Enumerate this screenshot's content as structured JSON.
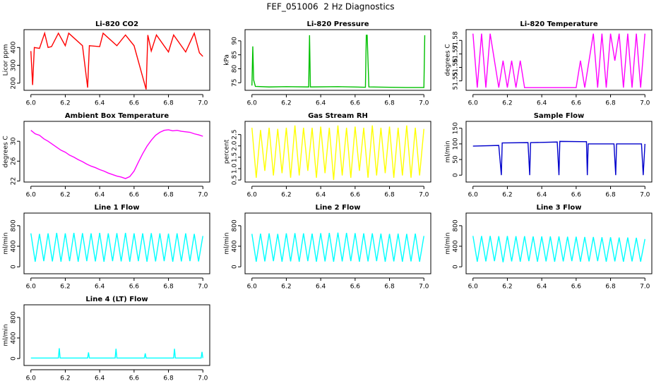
{
  "title": "FEF_051006  2 Hz Diagnostics",
  "chart_data": [
    {
      "type": "line",
      "title": "Li-820 CO2",
      "ylabel": "Licor ppm",
      "color": "#ff0000",
      "x": [
        6.0,
        6.01,
        6.02,
        6.05,
        6.08,
        6.1,
        6.12,
        6.16,
        6.2,
        6.22,
        6.3,
        6.33,
        6.34,
        6.4,
        6.42,
        6.5,
        6.55,
        6.6,
        6.67,
        6.68,
        6.7,
        6.73,
        6.8,
        6.83,
        6.9,
        6.95,
        6.98,
        7.0
      ],
      "values": [
        380,
        190,
        400,
        395,
        480,
        400,
        405,
        480,
        410,
        480,
        410,
        175,
        410,
        405,
        480,
        410,
        470,
        410,
        165,
        470,
        380,
        470,
        375,
        470,
        375,
        480,
        370,
        350
      ],
      "xlim": [
        5.96,
        7.04
      ],
      "xticks": [
        {
          "value": 6,
          "label": "6.0"
        },
        6.2,
        6.4,
        6.6,
        6.8,
        {
          "value": 7,
          "label": "7.0"
        }
      ],
      "ylim": [
        160,
        500
      ],
      "yticks": [
        200,
        300,
        400
      ]
    },
    {
      "type": "line",
      "title": "Li-820 Pressure",
      "ylabel": "kPa",
      "color": "#00c000",
      "x": [
        6.0,
        6.005,
        6.01,
        6.02,
        6.1,
        6.2,
        6.33,
        6.335,
        6.34,
        6.5,
        6.66,
        6.665,
        6.67,
        6.68,
        6.8,
        6.9,
        7.0,
        7.005
      ],
      "values": [
        74,
        88,
        76,
        73.7,
        73.5,
        73.6,
        73.5,
        92,
        73.5,
        73.6,
        73.4,
        92,
        92,
        73.5,
        73.4,
        73.3,
        73.3,
        92
      ],
      "xlim": [
        5.96,
        7.04
      ],
      "xticks": [
        {
          "value": 6,
          "label": "6.0"
        },
        6.2,
        6.4,
        6.6,
        6.8,
        {
          "value": 7,
          "label": "7.0"
        }
      ],
      "ylim": [
        72.3,
        94
      ],
      "yticks": [
        75,
        80,
        85,
        90
      ]
    },
    {
      "type": "line",
      "title": "Li-820 Temperature",
      "ylabel": "degrees C",
      "color": "#ff00ff",
      "x": [
        6,
        6.025,
        6.05,
        6.075,
        6.1,
        6.125,
        6.15,
        6.175,
        6.2,
        6.225,
        6.25,
        6.275,
        6.3,
        6.325,
        6.35,
        6.375,
        6.4,
        6.425,
        6.45,
        6.475,
        6.5,
        6.525,
        6.55,
        6.575,
        6.6,
        6.625,
        6.65,
        6.675,
        6.7,
        6.725,
        6.75,
        6.775,
        6.8,
        6.825,
        6.85,
        6.875,
        6.9,
        6.925,
        6.95,
        6.975,
        7
      ],
      "values": [
        51.585,
        51.545,
        51.585,
        51.545,
        51.585,
        51.565,
        51.545,
        51.565,
        51.545,
        51.565,
        51.545,
        51.565,
        51.545,
        51.545,
        51.545,
        51.545,
        51.545,
        51.545,
        51.545,
        51.545,
        51.545,
        51.545,
        51.545,
        51.545,
        51.545,
        51.565,
        51.545,
        51.565,
        51.585,
        51.545,
        51.585,
        51.545,
        51.585,
        51.565,
        51.585,
        51.545,
        51.585,
        51.545,
        51.585,
        51.545,
        51.585
      ],
      "xlim": [
        5.96,
        7.04
      ],
      "xticks": [
        {
          "value": 6,
          "label": "6.0"
        },
        6.2,
        6.4,
        6.6,
        6.8,
        {
          "value": 7,
          "label": "7.0"
        }
      ],
      "ylim": [
        51.543,
        51.588
      ],
      "yticks": [
        51.55,
        51.56,
        51.57,
        51.58
      ]
    },
    {
      "type": "line",
      "title": "Ambient Box Temperature",
      "ylabel": "degrees C",
      "color": "#ff00ff",
      "x": [
        6,
        6.025,
        6.05,
        6.075,
        6.1,
        6.125,
        6.15,
        6.175,
        6.2,
        6.225,
        6.25,
        6.275,
        6.3,
        6.325,
        6.35,
        6.375,
        6.4,
        6.425,
        6.45,
        6.475,
        6.5,
        6.525,
        6.55,
        6.575,
        6.6,
        6.625,
        6.65,
        6.675,
        6.7,
        6.725,
        6.75,
        6.775,
        6.8,
        6.825,
        6.85,
        6.875,
        6.9,
        6.925,
        6.95,
        6.975,
        7
      ],
      "values": [
        32.2,
        31.5,
        31.2,
        30.5,
        30.0,
        29.4,
        28.8,
        28.2,
        27.8,
        27.2,
        26.8,
        26.3,
        25.9,
        25.4,
        25.0,
        24.7,
        24.3,
        24.0,
        23.6,
        23.3,
        23.0,
        22.8,
        22.5,
        22.9,
        24.0,
        25.8,
        27.5,
        29.0,
        30.2,
        31.2,
        31.8,
        32.2,
        32.3,
        32.1,
        32.2,
        32.0,
        31.9,
        31.8,
        31.5,
        31.3,
        31.0
      ],
      "xlim": [
        5.96,
        7.04
      ],
      "xticks": [
        {
          "value": 6,
          "label": "6.0"
        },
        6.2,
        6.4,
        6.6,
        6.8,
        {
          "value": 7,
          "label": "7.0"
        }
      ],
      "ylim": [
        21.8,
        34
      ],
      "yticks": [
        22,
        26,
        30
      ]
    },
    {
      "type": "line",
      "title": "Gas Stream RH",
      "ylabel": "percent",
      "color": "#ffff00",
      "x": [
        6,
        6.025,
        6.05,
        6.075,
        6.1,
        6.125,
        6.15,
        6.175,
        6.2,
        6.225,
        6.25,
        6.275,
        6.3,
        6.325,
        6.35,
        6.375,
        6.4,
        6.425,
        6.45,
        6.475,
        6.5,
        6.525,
        6.55,
        6.575,
        6.6,
        6.625,
        6.65,
        6.675,
        6.7,
        6.725,
        6.75,
        6.775,
        6.8,
        6.825,
        6.85,
        6.875,
        6.9,
        6.925,
        6.95,
        6.975,
        7
      ],
      "values": [
        2.8,
        0.6,
        2.7,
        0.9,
        2.8,
        0.7,
        2.75,
        0.8,
        2.8,
        0.6,
        2.9,
        0.7,
        2.8,
        0.9,
        2.8,
        0.6,
        2.85,
        0.8,
        2.8,
        0.5,
        2.9,
        0.7,
        2.8,
        0.6,
        2.85,
        0.9,
        2.8,
        0.6,
        2.9,
        0.7,
        2.8,
        0.8,
        2.85,
        0.6,
        2.8,
        0.7,
        2.9,
        0.6,
        2.8,
        0.7,
        2.75
      ],
      "xlim": [
        5.96,
        7.04
      ],
      "xticks": [
        {
          "value": 6,
          "label": "6.0"
        },
        6.2,
        6.4,
        6.6,
        6.8,
        {
          "value": 7,
          "label": "7.0"
        }
      ],
      "ylim": [
        0.41,
        3.08
      ],
      "yticks": [
        0.5,
        {
          "value": 1,
          "label": "1.0"
        },
        1.5,
        {
          "value": 2,
          "label": "2.0"
        },
        2.5
      ]
    },
    {
      "type": "line",
      "title": "Sample Flow",
      "ylabel": "ml/min",
      "color": "#0000cc",
      "x": [
        6.0,
        6.15,
        6.165,
        6.17,
        6.175,
        6.32,
        6.33,
        6.335,
        6.49,
        6.5,
        6.505,
        6.66,
        6.665,
        6.67,
        6.68,
        6.82,
        6.83,
        6.835,
        6.98,
        6.99,
        7.0
      ],
      "values": [
        93,
        95,
        0,
        103,
        103,
        104,
        0,
        104,
        106,
        0,
        108,
        107,
        0,
        100,
        100,
        100,
        0,
        100,
        100,
        0,
        100
      ],
      "xlim": [
        5.96,
        7.04
      ],
      "xticks": [
        {
          "value": 6,
          "label": "6.0"
        },
        6.2,
        6.4,
        6.6,
        6.8,
        {
          "value": 7,
          "label": "7.0"
        }
      ],
      "ylim": [
        -22,
        172
      ],
      "yticks": [
        0,
        50,
        100,
        150
      ]
    },
    {
      "type": "line",
      "title": "Line 1 Flow",
      "ylabel": "ml/min",
      "color": "#00ffff",
      "x": [
        6,
        6.025,
        6.05,
        6.075,
        6.1,
        6.125,
        6.15,
        6.175,
        6.2,
        6.225,
        6.25,
        6.275,
        6.3,
        6.325,
        6.35,
        6.375,
        6.4,
        6.425,
        6.45,
        6.475,
        6.5,
        6.525,
        6.55,
        6.575,
        6.6,
        6.625,
        6.65,
        6.675,
        6.7,
        6.725,
        6.75,
        6.775,
        6.8,
        6.825,
        6.85,
        6.875,
        6.9,
        6.925,
        6.95,
        6.975,
        7
      ],
      "values": [
        650,
        100,
        640,
        110,
        650,
        105,
        660,
        100,
        650,
        110,
        660,
        100,
        655,
        110,
        650,
        105,
        660,
        100,
        650,
        110,
        655,
        105,
        660,
        100,
        650,
        110,
        650,
        100,
        655,
        105,
        650,
        110,
        645,
        100,
        650,
        105,
        650,
        110,
        640,
        105,
        600
      ],
      "xlim": [
        5.96,
        7.04
      ],
      "xticks": [
        {
          "value": 6,
          "label": "6.0"
        },
        6.2,
        6.4,
        6.6,
        6.8,
        {
          "value": 7,
          "label": "7.0"
        }
      ],
      "ylim": [
        -135,
        1045
      ],
      "yticks": [
        0,
        400,
        800
      ]
    },
    {
      "type": "line",
      "title": "Line 2 Flow",
      "ylabel": "ml/min",
      "color": "#00ffff",
      "x": [
        6,
        6.025,
        6.05,
        6.075,
        6.1,
        6.125,
        6.15,
        6.175,
        6.2,
        6.225,
        6.25,
        6.275,
        6.3,
        6.325,
        6.35,
        6.375,
        6.4,
        6.425,
        6.45,
        6.475,
        6.5,
        6.525,
        6.55,
        6.575,
        6.6,
        6.625,
        6.65,
        6.675,
        6.7,
        6.725,
        6.75,
        6.775,
        6.8,
        6.825,
        6.85,
        6.875,
        6.9,
        6.925,
        6.95,
        6.975,
        7
      ],
      "values": [
        640,
        100,
        645,
        105,
        650,
        110,
        640,
        100,
        650,
        105,
        655,
        100,
        650,
        110,
        645,
        100,
        655,
        105,
        660,
        100,
        665,
        105,
        660,
        110,
        655,
        100,
        650,
        105,
        650,
        110,
        645,
        100,
        640,
        105,
        645,
        100,
        640,
        105,
        645,
        100,
        600
      ],
      "xlim": [
        5.96,
        7.04
      ],
      "xticks": [
        {
          "value": 6,
          "label": "6.0"
        },
        6.2,
        6.4,
        6.6,
        6.8,
        {
          "value": 7,
          "label": "7.0"
        }
      ],
      "ylim": [
        -135,
        1045
      ],
      "yticks": [
        0,
        400,
        800
      ]
    },
    {
      "type": "line",
      "title": "Line 3 Flow",
      "ylabel": "ml/min",
      "color": "#00ffff",
      "x": [
        6,
        6.025,
        6.05,
        6.075,
        6.1,
        6.125,
        6.15,
        6.175,
        6.2,
        6.225,
        6.25,
        6.275,
        6.3,
        6.325,
        6.35,
        6.375,
        6.4,
        6.425,
        6.45,
        6.475,
        6.5,
        6.525,
        6.55,
        6.575,
        6.6,
        6.625,
        6.65,
        6.675,
        6.7,
        6.725,
        6.75,
        6.775,
        6.8,
        6.825,
        6.85,
        6.875,
        6.9,
        6.925,
        6.95,
        6.975,
        7
      ],
      "values": [
        600,
        100,
        600,
        105,
        600,
        110,
        595,
        90,
        600,
        105,
        595,
        100,
        595,
        110,
        590,
        100,
        590,
        105,
        590,
        100,
        590,
        105,
        585,
        110,
        585,
        100,
        580,
        105,
        580,
        110,
        575,
        100,
        575,
        105,
        570,
        100,
        570,
        105,
        565,
        100,
        540
      ],
      "xlim": [
        5.96,
        7.04
      ],
      "xticks": [
        {
          "value": 6,
          "label": "6.0"
        },
        6.2,
        6.4,
        6.6,
        6.8,
        {
          "value": 7,
          "label": "7.0"
        }
      ],
      "ylim": [
        -135,
        1045
      ],
      "yticks": [
        0,
        400,
        800
      ]
    },
    {
      "type": "line",
      "title": "Line 4 (LT) Flow",
      "ylabel": "ml/min",
      "color": "#00ffff",
      "x": [
        6.0,
        6.16,
        6.165,
        6.17,
        6.33,
        6.335,
        6.34,
        6.49,
        6.495,
        6.5,
        6.66,
        6.665,
        6.67,
        6.83,
        6.835,
        6.84,
        6.99,
        6.995,
        7.0
      ],
      "values": [
        10,
        10,
        200,
        10,
        10,
        120,
        10,
        10,
        190,
        10,
        10,
        100,
        10,
        10,
        190,
        10,
        10,
        130,
        10
      ],
      "xlim": [
        5.96,
        7.04
      ],
      "xticks": [
        {
          "value": 6,
          "label": "6.0"
        },
        6.2,
        6.4,
        6.6,
        6.8,
        {
          "value": 7,
          "label": "7.0"
        }
      ],
      "ylim": [
        -135,
        1045
      ],
      "yticks": [
        0,
        400,
        800
      ]
    }
  ]
}
